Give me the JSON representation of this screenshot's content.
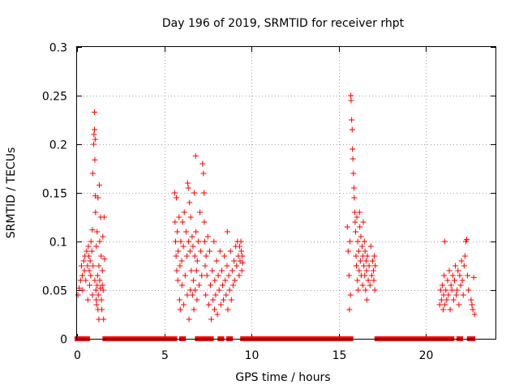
{
  "chart_data": {
    "type": "scatter",
    "title": "Day 196 of 2019, SRMTID for receiver rhpt",
    "xlabel": "GPS time / hours",
    "ylabel": "SRMTID / TECUs",
    "xlim": [
      0,
      24
    ],
    "ylim": [
      0,
      0.3
    ],
    "xticks": [
      0,
      5,
      10,
      15,
      20
    ],
    "xtick_labels": [
      "0",
      "5",
      "10",
      "15",
      "20"
    ],
    "yticks": [
      0,
      0.05,
      0.1,
      0.15,
      0.2,
      0.25,
      0.3
    ],
    "ytick_labels": [
      "0",
      "0.05",
      "0.1",
      "0.15",
      "0.2",
      "0.25",
      "0.3"
    ],
    "grid": true,
    "marker": "+",
    "color": "#ff0000",
    "series": [
      {
        "name": "SRMTID",
        "points": [
          [
            0.05,
            0.045
          ],
          [
            0.12,
            0.052
          ],
          [
            0.2,
            0.06
          ],
          [
            0.25,
            0.075
          ],
          [
            0.3,
            0.065
          ],
          [
            0.32,
            0.05
          ],
          [
            0.38,
            0.08
          ],
          [
            0.42,
            0.07
          ],
          [
            0.45,
            0.085
          ],
          [
            0.5,
            0.06
          ],
          [
            0.55,
            0.09
          ],
          [
            0.6,
            0.075
          ],
          [
            0.65,
            0.095
          ],
          [
            0.7,
            0.07
          ],
          [
            0.72,
            0.055
          ],
          [
            0.75,
            0.08
          ],
          [
            0.78,
            0.065
          ],
          [
            0.8,
            0.1
          ],
          [
            0.85,
            0.09
          ],
          [
            0.88,
            0.112
          ],
          [
            0.9,
            0.17
          ],
          [
            0.92,
            0.075
          ],
          [
            0.95,
            0.2
          ],
          [
            0.97,
            0.21
          ],
          [
            1.0,
            0.233
          ],
          [
            1.0,
            0.215
          ],
          [
            1.02,
            0.184
          ],
          [
            1.02,
            0.06
          ],
          [
            1.04,
            0.205
          ],
          [
            1.05,
            0.147
          ],
          [
            1.06,
            0.13
          ],
          [
            1.08,
            0.05
          ],
          [
            1.1,
            0.095
          ],
          [
            1.1,
            0.04
          ],
          [
            1.12,
            0.035
          ],
          [
            1.15,
            0.11
          ],
          [
            1.15,
            0.055
          ],
          [
            1.18,
            0.065
          ],
          [
            1.2,
            0.03
          ],
          [
            1.2,
            0.145
          ],
          [
            1.22,
            0.045
          ],
          [
            1.25,
            0.075
          ],
          [
            1.25,
            0.02
          ],
          [
            1.28,
            0.158
          ],
          [
            1.3,
            0.1
          ],
          [
            1.3,
            0.06
          ],
          [
            1.35,
            0.125
          ],
          [
            1.38,
            0.085
          ],
          [
            1.4,
            0.04
          ],
          [
            1.42,
            0.03
          ],
          [
            1.45,
            0.07
          ],
          [
            1.48,
            0.105
          ],
          [
            1.5,
            0.05
          ],
          [
            1.52,
            0.02
          ],
          [
            1.55,
            0.125
          ],
          [
            1.58,
            0.082
          ],
          [
            0.62,
            0.04
          ],
          [
            0.68,
            0.085
          ],
          [
            0.88,
            0.045
          ],
          [
            1.33,
            0.052
          ],
          [
            1.45,
            0.055
          ],
          [
            5.6,
            0.15
          ],
          [
            5.62,
            0.12
          ],
          [
            5.65,
            0.1
          ],
          [
            5.68,
            0.085
          ],
          [
            5.7,
            0.145
          ],
          [
            5.72,
            0.07
          ],
          [
            5.75,
            0.11
          ],
          [
            5.78,
            0.06
          ],
          [
            5.8,
            0.09
          ],
          [
            5.85,
            0.125
          ],
          [
            5.88,
            0.04
          ],
          [
            5.9,
            0.075
          ],
          [
            5.92,
            0.03
          ],
          [
            5.95,
            0.1
          ],
          [
            6.0,
            0.08
          ],
          [
            6.02,
            0.055
          ],
          [
            6.05,
            0.12
          ],
          [
            6.1,
            0.095
          ],
          [
            6.12,
            0.035
          ],
          [
            6.15,
            0.13
          ],
          [
            6.2,
            0.065
          ],
          [
            6.25,
            0.11
          ],
          [
            6.3,
            0.085
          ],
          [
            6.32,
            0.045
          ],
          [
            6.35,
            0.16
          ],
          [
            6.38,
            0.155
          ],
          [
            6.4,
            0.1
          ],
          [
            6.42,
            0.02
          ],
          [
            6.45,
            0.14
          ],
          [
            6.48,
            0.09
          ],
          [
            6.5,
            0.05
          ],
          [
            6.52,
            0.125
          ],
          [
            6.55,
            0.07
          ],
          [
            6.6,
            0.105
          ],
          [
            6.62,
            0.045
          ],
          [
            6.65,
            0.095
          ],
          [
            6.68,
            0.06
          ],
          [
            6.7,
            0.03
          ],
          [
            6.72,
            0.15
          ],
          [
            6.75,
            0.085
          ],
          [
            6.78,
            0.05
          ],
          [
            6.8,
            0.188
          ],
          [
            6.82,
            0.11
          ],
          [
            6.85,
            0.07
          ],
          [
            6.88,
            0.04
          ],
          [
            6.9,
            0.08
          ],
          [
            6.95,
            0.1
          ],
          [
            7.0,
            0.055
          ],
          [
            7.05,
            0.13
          ],
          [
            7.1,
            0.09
          ],
          [
            7.15,
            0.065
          ],
          [
            7.2,
            0.18
          ],
          [
            7.25,
            0.17
          ],
          [
            7.28,
            0.15
          ],
          [
            7.3,
            0.12
          ],
          [
            7.32,
            0.1
          ],
          [
            7.35,
            0.075
          ],
          [
            7.38,
            0.045
          ],
          [
            7.4,
            0.085
          ],
          [
            7.45,
            0.065
          ],
          [
            7.5,
            0.105
          ],
          [
            7.55,
            0.035
          ],
          [
            7.6,
            0.09
          ],
          [
            7.65,
            0.055
          ],
          [
            7.7,
            0.02
          ],
          [
            7.75,
            0.07
          ],
          [
            7.8,
            0.04
          ],
          [
            7.85,
            0.1
          ],
          [
            7.88,
            0.03
          ],
          [
            7.9,
            0.06
          ],
          [
            7.95,
            0.045
          ],
          [
            8.0,
            0.08
          ],
          [
            8.05,
            0.025
          ],
          [
            8.1,
            0.065
          ],
          [
            8.15,
            0.05
          ],
          [
            8.2,
            0.09
          ],
          [
            8.25,
            0.035
          ],
          [
            8.3,
            0.07
          ],
          [
            8.35,
            0.055
          ],
          [
            8.4,
            0.04
          ],
          [
            8.45,
            0.085
          ],
          [
            8.5,
            0.06
          ],
          [
            8.55,
            0.045
          ],
          [
            8.6,
            0.075
          ],
          [
            8.62,
            0.11
          ],
          [
            8.65,
            0.03
          ],
          [
            8.7,
            0.065
          ],
          [
            8.75,
            0.05
          ],
          [
            8.8,
            0.09
          ],
          [
            8.85,
            0.04
          ],
          [
            8.9,
            0.07
          ],
          [
            8.95,
            0.055
          ],
          [
            9.0,
            0.08
          ],
          [
            9.05,
            0.06
          ],
          [
            9.1,
            0.095
          ],
          [
            9.15,
            0.075
          ],
          [
            9.2,
            0.1
          ],
          [
            9.25,
            0.085
          ],
          [
            9.3,
            0.065
          ],
          [
            9.32,
            0.095
          ],
          [
            9.35,
            0.08
          ],
          [
            9.4,
            0.1
          ],
          [
            9.42,
            0.09
          ],
          [
            9.45,
            0.07
          ],
          [
            9.48,
            0.085
          ],
          [
            9.5,
            0.078
          ],
          [
            15.5,
            0.115
          ],
          [
            15.55,
            0.09
          ],
          [
            15.6,
            0.065
          ],
          [
            15.62,
            0.03
          ],
          [
            15.65,
            0.1
          ],
          [
            15.68,
            0.045
          ],
          [
            15.7,
            0.25
          ],
          [
            15.72,
            0.245
          ],
          [
            15.75,
            0.225
          ],
          [
            15.78,
            0.215
          ],
          [
            15.8,
            0.195
          ],
          [
            15.82,
            0.185
          ],
          [
            15.85,
            0.17
          ],
          [
            15.88,
            0.155
          ],
          [
            15.9,
            0.145
          ],
          [
            15.92,
            0.13
          ],
          [
            15.95,
            0.12
          ],
          [
            15.98,
            0.11
          ],
          [
            16.0,
            0.085
          ],
          [
            16.02,
            0.075
          ],
          [
            16.05,
            0.125
          ],
          [
            16.08,
            0.06
          ],
          [
            16.1,
            0.1
          ],
          [
            16.12,
            0.05
          ],
          [
            16.15,
            0.09
          ],
          [
            16.18,
            0.07
          ],
          [
            16.2,
            0.13
          ],
          [
            16.22,
            0.115
          ],
          [
            16.25,
            0.08
          ],
          [
            16.28,
            0.105
          ],
          [
            16.3,
            0.065
          ],
          [
            16.35,
            0.095
          ],
          [
            16.38,
            0.055
          ],
          [
            16.4,
            0.085
          ],
          [
            16.42,
            0.12
          ],
          [
            16.45,
            0.075
          ],
          [
            16.48,
            0.1
          ],
          [
            16.5,
            0.065
          ],
          [
            16.52,
            0.09
          ],
          [
            16.55,
            0.05
          ],
          [
            16.58,
            0.08
          ],
          [
            16.6,
            0.07
          ],
          [
            16.62,
            0.04
          ],
          [
            16.65,
            0.085
          ],
          [
            16.7,
            0.06
          ],
          [
            16.75,
            0.075
          ],
          [
            16.8,
            0.055
          ],
          [
            16.85,
            0.095
          ],
          [
            16.9,
            0.065
          ],
          [
            16.95,
            0.08
          ],
          [
            17.0,
            0.07
          ],
          [
            17.02,
            0.06
          ],
          [
            17.05,
            0.085
          ],
          [
            17.08,
            0.05
          ],
          [
            17.1,
            0.075
          ],
          [
            20.8,
            0.035
          ],
          [
            20.85,
            0.05
          ],
          [
            20.9,
            0.04
          ],
          [
            20.95,
            0.055
          ],
          [
            21.0,
            0.03
          ],
          [
            21.02,
            0.045
          ],
          [
            21.05,
            0.065
          ],
          [
            21.08,
            0.1
          ],
          [
            21.1,
            0.035
          ],
          [
            21.15,
            0.05
          ],
          [
            21.2,
            0.04
          ],
          [
            21.25,
            0.06
          ],
          [
            21.3,
            0.045
          ],
          [
            21.35,
            0.07
          ],
          [
            21.4,
            0.03
          ],
          [
            21.45,
            0.055
          ],
          [
            21.5,
            0.05
          ],
          [
            21.55,
            0.065
          ],
          [
            21.6,
            0.04
          ],
          [
            21.65,
            0.06
          ],
          [
            21.7,
            0.075
          ],
          [
            21.75,
            0.045
          ],
          [
            21.8,
            0.05
          ],
          [
            21.85,
            0.07
          ],
          [
            21.9,
            0.035
          ],
          [
            21.95,
            0.065
          ],
          [
            22.0,
            0.055
          ],
          [
            22.05,
            0.08
          ],
          [
            22.1,
            0.06
          ],
          [
            22.15,
            0.045
          ],
          [
            22.2,
            0.075
          ],
          [
            22.25,
            0.085
          ],
          [
            22.3,
            0.1
          ],
          [
            22.35,
            0.102
          ],
          [
            22.4,
            0.065
          ],
          [
            22.45,
            0.05
          ],
          [
            22.6,
            0.04
          ],
          [
            22.65,
            0.035
          ],
          [
            22.7,
            0.03
          ],
          [
            22.75,
            0.063
          ],
          [
            22.8,
            0.025
          ]
        ],
        "baseline_segments": [
          [
            0.0,
            0.6
          ],
          [
            1.6,
            5.6
          ],
          [
            6.0,
            6.1
          ],
          [
            6.9,
            7.5
          ],
          [
            7.6,
            7.7
          ],
          [
            8.2,
            8.3
          ],
          [
            8.7,
            8.8
          ],
          [
            9.5,
            15.7
          ],
          [
            17.2,
            20.9
          ],
          [
            21.0,
            21.5
          ],
          [
            21.9,
            22.0
          ],
          [
            22.5,
            22.7
          ]
        ]
      }
    ]
  }
}
